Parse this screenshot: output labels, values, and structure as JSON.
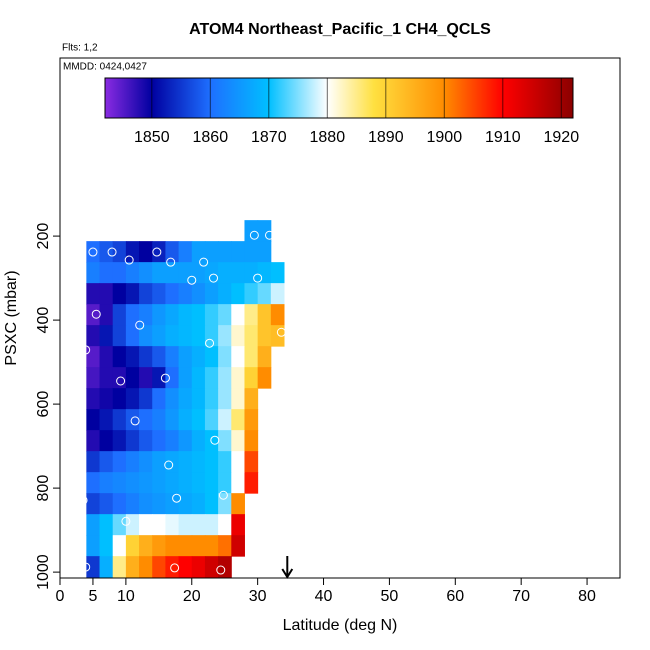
{
  "chart_data": {
    "type": "heatmap",
    "title": "ATOM4 Northeast_Pacific_1 CH4_QCLS",
    "flights": "Flts: 1,2",
    "dates": "MMDD: 0424,0427",
    "x_label": "Latitude (deg N)",
    "y_label": "PSXC (mbar)",
    "xlim": [
      0,
      85
    ],
    "ylim": [
      1014,
      -224
    ],
    "xticks": [
      0,
      5,
      10,
      20,
      30,
      40,
      50,
      60,
      70,
      80
    ],
    "yticks": [
      200,
      400,
      600,
      800,
      1000
    ],
    "x_edges": [
      4,
      6,
      8,
      10,
      12,
      14,
      16,
      18,
      20,
      22,
      24,
      26,
      28,
      30,
      32,
      34
    ],
    "y_edges": [
      162,
      212,
      262,
      312,
      362,
      412,
      462,
      512,
      562,
      612,
      662,
      712,
      762,
      812,
      862,
      912,
      962,
      1012
    ],
    "z": [
      [
        null,
        null,
        null,
        null,
        null,
        null,
        null,
        null,
        null,
        null,
        null,
        null,
        1866,
        1866,
        null
      ],
      [
        1860,
        1858,
        1856,
        1852,
        1850,
        1853,
        1858,
        1862,
        1866,
        1866,
        1866,
        1866,
        1866,
        1866,
        null
      ],
      [
        1862,
        1860,
        1860,
        1862,
        1864,
        1866,
        1866,
        1866,
        1866,
        1867,
        1868,
        1868,
        1868,
        1869,
        1870
      ],
      [
        1848,
        1848,
        1850,
        1852,
        1856,
        1858,
        1860,
        1862,
        1864,
        1866,
        1868,
        1870,
        1872,
        1874,
        1878
      ],
      [
        1845,
        1848,
        1856,
        1860,
        1862,
        1865,
        1867,
        1869,
        1870,
        1872,
        1874,
        1880,
        1885,
        1892,
        1900
      ],
      [
        1848,
        1852,
        1856,
        1860,
        1864,
        1866,
        1868,
        1869,
        1870,
        1872,
        1876,
        1882,
        1886,
        1892,
        1893
      ],
      [
        1845,
        1848,
        1850,
        1852,
        1855,
        1858,
        1862,
        1866,
        1868,
        1870,
        1875,
        1880,
        1886,
        1895,
        null
      ],
      [
        1846,
        1848,
        1848,
        1850,
        1848,
        1852,
        1860,
        1866,
        1869,
        1872,
        1876,
        1882,
        1890,
        1900,
        null
      ],
      [
        1848,
        1849,
        1850,
        1852,
        1855,
        1860,
        1864,
        1867,
        1869,
        1872,
        1876,
        1882,
        1895,
        null,
        null
      ],
      [
        1850,
        1852,
        1855,
        1858,
        1860,
        1862,
        1865,
        1868,
        1870,
        1873,
        1878,
        1886,
        1898,
        null,
        null
      ],
      [
        1848,
        1850,
        1852,
        1855,
        1858,
        1860,
        1862,
        1865,
        1868,
        1870,
        1875,
        1882,
        1900,
        null,
        null
      ],
      [
        1855,
        1858,
        1860,
        1862,
        1864,
        1866,
        1867,
        1868,
        1869,
        1870,
        1872,
        1880,
        1905,
        null,
        null
      ],
      [
        1860,
        1862,
        1863,
        1864,
        1865,
        1866,
        1867,
        1868,
        1869,
        1870,
        1872,
        1880,
        1908,
        null,
        null
      ],
      [
        1856,
        1858,
        1860,
        1862,
        1864,
        1865,
        1866,
        1867,
        1868,
        1870,
        1875,
        1900,
        null,
        null,
        null
      ],
      [
        1866,
        1870,
        1874,
        1878,
        1880,
        1880,
        1879,
        1878,
        1878,
        1878,
        1880,
        1912,
        null,
        null,
        null
      ],
      [
        1866,
        1870,
        1880,
        1890,
        1895,
        1898,
        1900,
        1900,
        1900,
        1900,
        1902,
        1915,
        null,
        null,
        null
      ],
      [
        1855,
        1868,
        1885,
        1895,
        1900,
        1905,
        1908,
        1910,
        1912,
        1915,
        1918,
        null,
        null,
        null,
        null
      ]
    ],
    "points": {
      "x": [
        5,
        7.9,
        10.5,
        14.7,
        16.8,
        21.8,
        20,
        23.3,
        30,
        29.5,
        31.8,
        5.5,
        12.1,
        3.9,
        22.7,
        33.6,
        9.2,
        16,
        11.4,
        23.5,
        16.5,
        3.5,
        17.7,
        24.8,
        10,
        3.9,
        17.4,
        24.4
      ],
      "y": [
        238,
        238,
        257,
        238,
        262,
        262,
        305,
        300,
        300,
        198,
        198,
        386,
        412,
        471,
        455,
        429,
        545,
        538,
        640,
        686,
        745,
        829,
        824,
        817,
        879,
        988,
        990,
        995
      ]
    },
    "arrow_x": 34.5,
    "clim": [
      1842,
      1922
    ],
    "colorticks": [
      1850,
      1860,
      1870,
      1880,
      1890,
      1900,
      1910,
      1920
    ],
    "colormap": [
      {
        "value": 1842,
        "color": "#8a2be2"
      },
      {
        "value": 1850,
        "color": "#0000a0"
      },
      {
        "value": 1860,
        "color": "#1e6fff"
      },
      {
        "value": 1870,
        "color": "#00bfff"
      },
      {
        "value": 1880,
        "color": "#ffffff"
      },
      {
        "value": 1888,
        "color": "#ffe040"
      },
      {
        "value": 1900,
        "color": "#ff8c00"
      },
      {
        "value": 1910,
        "color": "#ff0000"
      },
      {
        "value": 1922,
        "color": "#8b0000"
      }
    ]
  }
}
